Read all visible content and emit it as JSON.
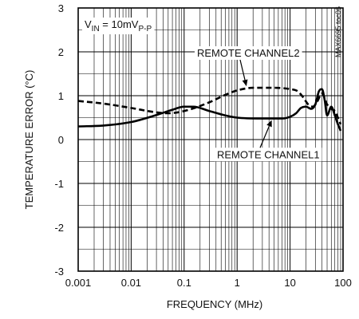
{
  "chart_data": {
    "type": "line",
    "xscale": "log",
    "xlim": [
      0.001,
      100
    ],
    "ylim": [
      -3,
      3
    ],
    "xticks": [
      0.001,
      0.01,
      0.1,
      1,
      10,
      100
    ],
    "xtick_labels": [
      "0.001",
      "0.01",
      "0.1",
      "1",
      "10",
      "100"
    ],
    "yticks": [
      -3,
      -2,
      -1,
      0,
      1,
      2,
      3
    ],
    "ytick_labels": [
      "-3",
      "-2",
      "-1",
      "0",
      "1",
      "2",
      "3"
    ],
    "xlabel": "FREQUENCY (MHz)",
    "ylabel": "TEMPERATURE ERROR (°C)",
    "grid": true,
    "condition": {
      "prefix": "V",
      "sub1": "IN",
      "mid": " = 10mV",
      "sub2": "P-P"
    },
    "tag": "MAX6695 toc06",
    "series": [
      {
        "name": "REMOTE CHANNEL1",
        "style": "solid",
        "x": [
          0.001,
          0.003,
          0.01,
          0.03,
          0.06,
          0.1,
          0.15,
          0.3,
          0.6,
          1,
          3,
          7,
          10,
          13,
          16,
          20,
          25,
          30,
          35,
          40,
          45,
          50,
          60,
          70,
          80,
          90
        ],
        "y": [
          0.3,
          0.32,
          0.4,
          0.56,
          0.68,
          0.75,
          0.75,
          0.65,
          0.55,
          0.5,
          0.48,
          0.48,
          0.52,
          0.6,
          0.72,
          0.75,
          0.7,
          0.8,
          1.1,
          1.15,
          0.9,
          0.55,
          0.75,
          0.55,
          0.35,
          0.2
        ]
      },
      {
        "name": "REMOTE CHANNEL2",
        "style": "dashed",
        "x": [
          0.001,
          0.003,
          0.01,
          0.03,
          0.05,
          0.1,
          0.3,
          0.6,
          1,
          2,
          5,
          10,
          14,
          18,
          22,
          27,
          32,
          40,
          50,
          60,
          70,
          80,
          90
        ],
        "y": [
          0.88,
          0.82,
          0.72,
          0.62,
          0.6,
          0.65,
          0.85,
          1.02,
          1.12,
          1.18,
          1.18,
          1.15,
          1.1,
          0.95,
          0.8,
          0.75,
          0.85,
          1.05,
          0.8,
          0.7,
          0.65,
          0.5,
          0.35
        ]
      }
    ],
    "annotations": [
      {
        "text": "REMOTE CHANNEL2",
        "series": 1
      },
      {
        "text": "REMOTE CHANNEL1",
        "series": 0
      }
    ],
    "colors": {
      "line": "#000000",
      "grid": "#000000",
      "background": "#ffffff"
    }
  }
}
